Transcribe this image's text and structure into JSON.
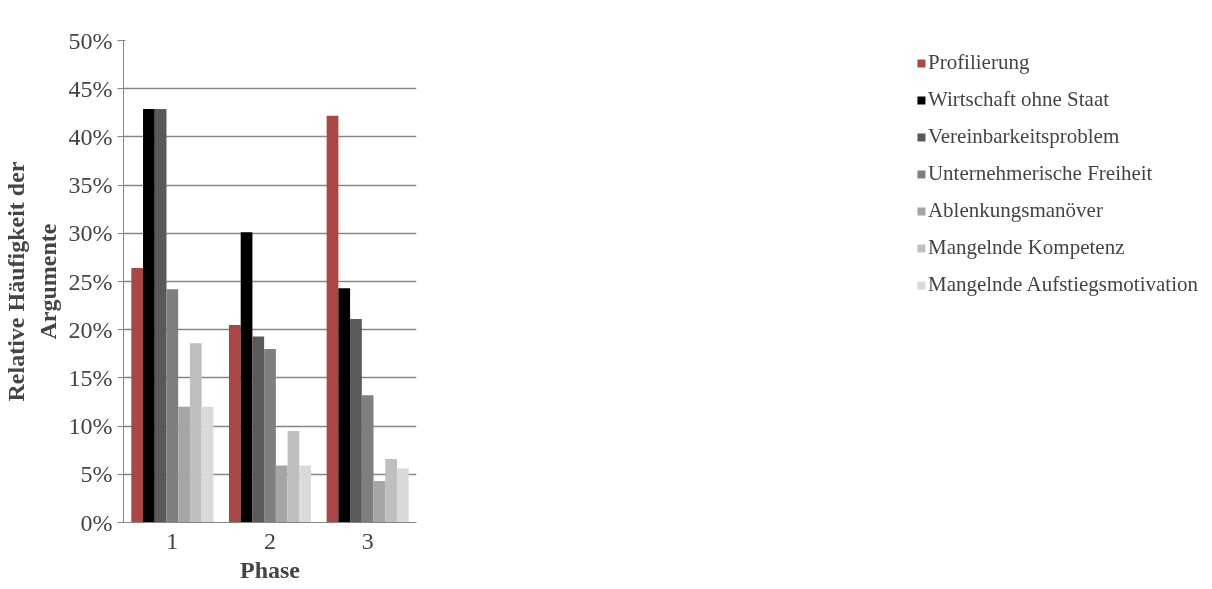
{
  "chart_data": {
    "type": "bar",
    "xlabel": "Phase",
    "ylabel": "Relative Häufigkeit der Argumente",
    "categories": [
      "1",
      "2",
      "3"
    ],
    "series": [
      {
        "name": "Profilierung",
        "color": "#aa4643",
        "values": [
          26.4,
          20.5,
          42.2
        ]
      },
      {
        "name": "Wirtschaft ohne Staat",
        "color": "#000000",
        "values": [
          42.9,
          30.1,
          24.3
        ]
      },
      {
        "name": "Vereinbarkeitsproblem",
        "color": "#595959",
        "values": [
          42.9,
          19.3,
          21.1
        ]
      },
      {
        "name": "Unternehmerische Freiheit",
        "color": "#7f7f7f",
        "values": [
          24.2,
          18.0,
          13.2
        ]
      },
      {
        "name": "Ablenkungsmanöver",
        "color": "#a5a5a5",
        "values": [
          12.0,
          5.9,
          4.3
        ]
      },
      {
        "name": "Mangelnde Kompetenz",
        "color": "#bfbfbf",
        "values": [
          18.6,
          9.5,
          6.6
        ]
      },
      {
        "name": "Mangelnde Aufstiegsmotivation",
        "color": "#d9d9d9",
        "values": [
          12.0,
          5.9,
          5.6
        ]
      }
    ],
    "ylim": [
      0,
      50
    ],
    "yticks": [
      {
        "value": 0,
        "label": "0%"
      },
      {
        "value": 5,
        "label": "5%"
      },
      {
        "value": 10,
        "label": "10%"
      },
      {
        "value": 15,
        "label": "15%"
      },
      {
        "value": 20,
        "label": "20%"
      },
      {
        "value": 25,
        "label": "25%"
      },
      {
        "value": 30,
        "label": "30%"
      },
      {
        "value": 35,
        "label": "35%"
      },
      {
        "value": 40,
        "label": "40%"
      },
      {
        "value": 45,
        "label": "45%"
      },
      {
        "value": 50,
        "label": "50%"
      }
    ],
    "grid": "y",
    "legend": "right"
  }
}
